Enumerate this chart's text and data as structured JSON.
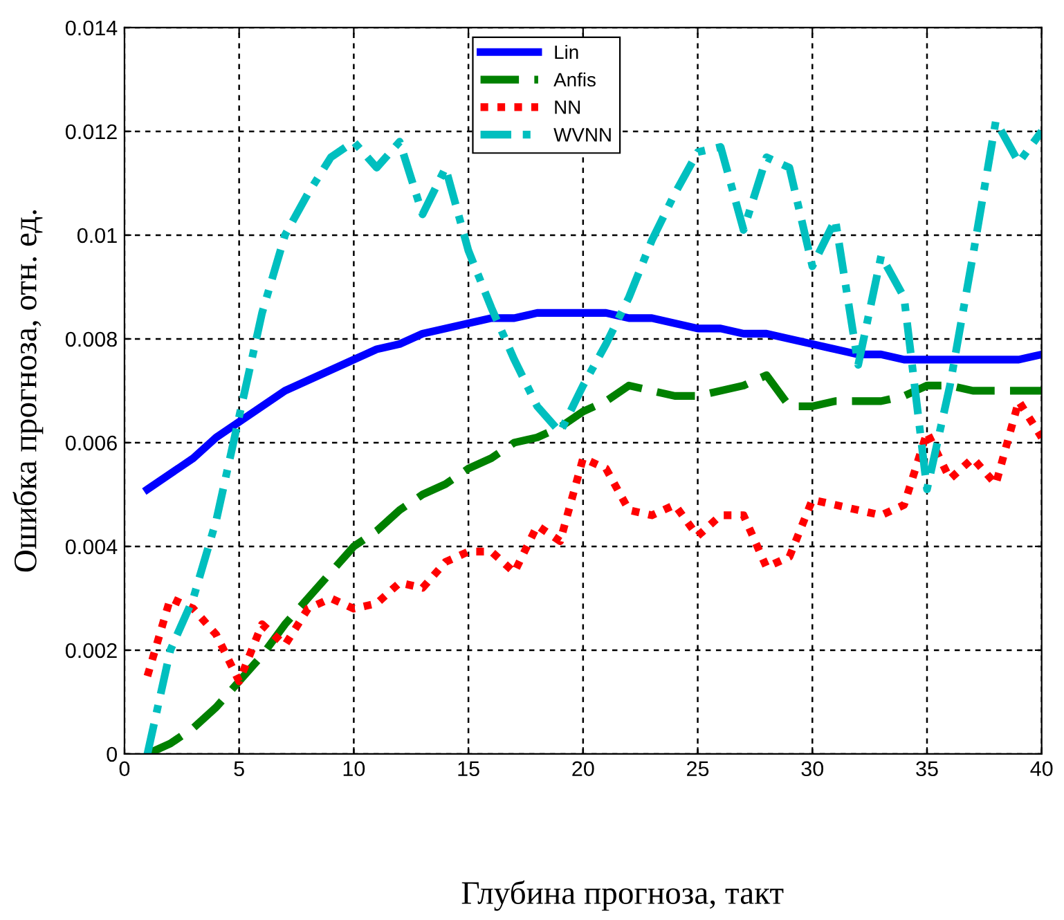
{
  "chart_data": {
    "type": "line",
    "xlabel": "Глубина прогноза, такт",
    "ylabel": "Ошибка прогноза, отн. ед.",
    "x": [
      1,
      2,
      3,
      4,
      5,
      6,
      7,
      8,
      9,
      10,
      11,
      12,
      13,
      14,
      15,
      16,
      17,
      18,
      19,
      20,
      21,
      22,
      23,
      24,
      25,
      26,
      27,
      28,
      29,
      30,
      31,
      32,
      33,
      34,
      35,
      36,
      37,
      38,
      39,
      40
    ],
    "series": [
      {
        "name": "Lin",
        "color": "#0000ff",
        "line_style": "solid",
        "values": [
          0.0051,
          0.0054,
          0.0057,
          0.0061,
          0.0064,
          0.0067,
          0.007,
          0.0072,
          0.0074,
          0.0076,
          0.0078,
          0.0079,
          0.0081,
          0.0082,
          0.0083,
          0.0084,
          0.0084,
          0.0085,
          0.0085,
          0.0085,
          0.0085,
          0.0084,
          0.0084,
          0.0083,
          0.0082,
          0.0082,
          0.0081,
          0.0081,
          0.008,
          0.0079,
          0.0078,
          0.0077,
          0.0077,
          0.0076,
          0.0076,
          0.0076,
          0.0076,
          0.0076,
          0.0076,
          0.0077
        ]
      },
      {
        "name": "Anfis",
        "color": "#008000",
        "line_style": "dashed",
        "values": [
          0.0,
          0.0002,
          0.0005,
          0.0009,
          0.0014,
          0.0019,
          0.0025,
          0.003,
          0.0035,
          0.004,
          0.0043,
          0.0047,
          0.005,
          0.0052,
          0.0055,
          0.0057,
          0.006,
          0.0061,
          0.0063,
          0.0066,
          0.0068,
          0.0071,
          0.007,
          0.0069,
          0.0069,
          0.007,
          0.0071,
          0.0073,
          0.0067,
          0.0067,
          0.0068,
          0.0068,
          0.0068,
          0.0069,
          0.0071,
          0.0071,
          0.007,
          0.007,
          0.007,
          0.007
        ]
      },
      {
        "name": "NN",
        "color": "#ff0000",
        "line_style": "dotted",
        "values": [
          0.0015,
          0.003,
          0.0028,
          0.0023,
          0.0014,
          0.0025,
          0.0021,
          0.0028,
          0.003,
          0.0028,
          0.0029,
          0.0033,
          0.0032,
          0.0037,
          0.0039,
          0.0039,
          0.0035,
          0.0044,
          0.0041,
          0.0057,
          0.0055,
          0.0047,
          0.0046,
          0.0048,
          0.0042,
          0.0046,
          0.0046,
          0.0036,
          0.0038,
          0.0049,
          0.0048,
          0.0047,
          0.0046,
          0.0048,
          0.0062,
          0.0053,
          0.0057,
          0.0052,
          0.0068,
          0.0061
        ]
      },
      {
        "name": "WVNN",
        "color": "#00bfbf",
        "line_style": "dashdot",
        "values": [
          0.0,
          0.002,
          0.003,
          0.0045,
          0.0065,
          0.0085,
          0.01,
          0.0108,
          0.0115,
          0.0118,
          0.0113,
          0.0118,
          0.0104,
          0.0113,
          0.0097,
          0.0086,
          0.0076,
          0.0067,
          0.0062,
          0.0071,
          0.0079,
          0.0088,
          0.0099,
          0.0108,
          0.0116,
          0.0117,
          0.0101,
          0.0115,
          0.0113,
          0.0094,
          0.0103,
          0.0075,
          0.0096,
          0.0088,
          0.0051,
          0.0071,
          0.0096,
          0.0122,
          0.0114,
          0.012
        ]
      }
    ],
    "xlim": [
      0,
      40
    ],
    "xticks": [
      0,
      5,
      10,
      15,
      20,
      25,
      30,
      35,
      40
    ],
    "ylim": [
      0,
      0.014
    ],
    "yticks": [
      0,
      0.002,
      0.004,
      0.006,
      0.008,
      0.01,
      0.012,
      0.014
    ],
    "grid": true,
    "legend": "top"
  }
}
